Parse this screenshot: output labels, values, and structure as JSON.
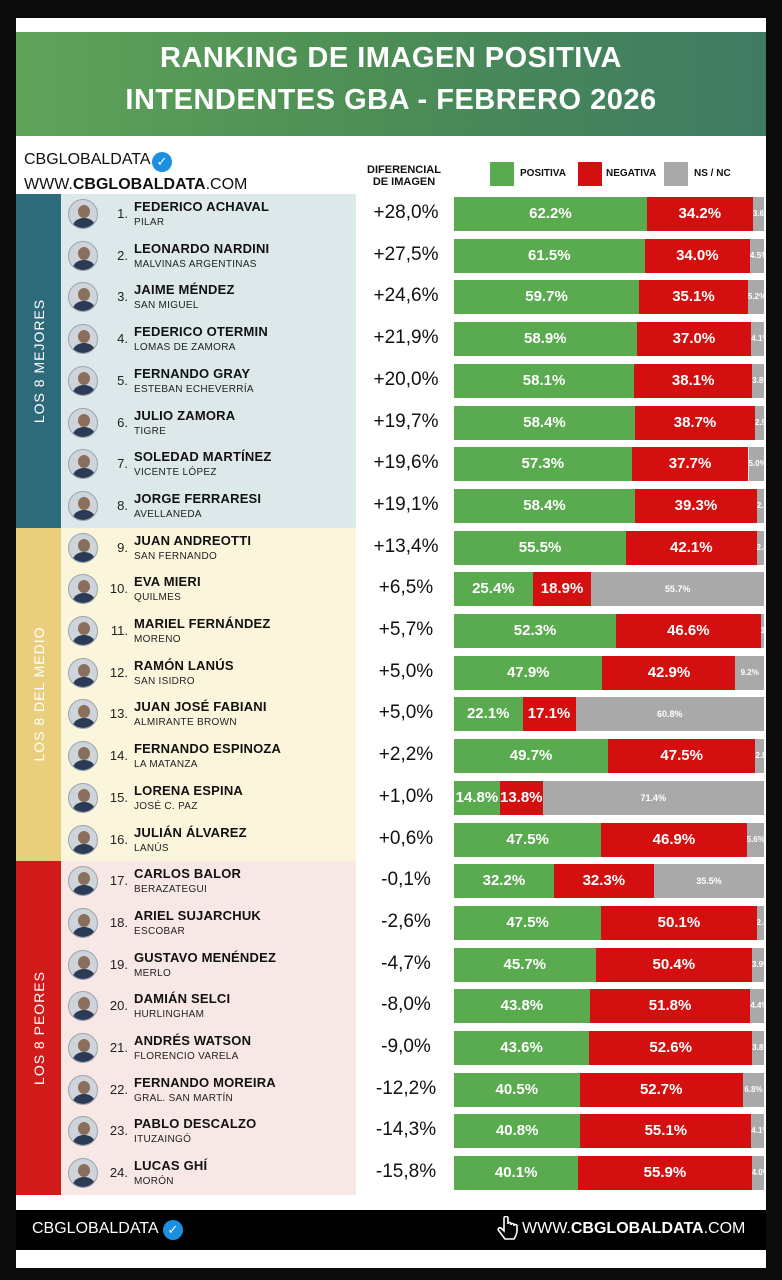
{
  "header": {
    "title_line1": "RANKING DE IMAGEN POSITIVA",
    "title_line2": "INTENDENTES GBA - FEBRERO 2026"
  },
  "brand": {
    "name": "CBGLOBALDATA",
    "site_prefix": "WWW.",
    "site_bold": "CBGLOBALDATA",
    "site_suffix": ".COM",
    "check_glyph": "✓"
  },
  "columns": {
    "diff_line1": "DIFERENCIAL",
    "diff_line2": "DE IMAGEN"
  },
  "footer": {
    "brand": "CBGLOBALDATA",
    "site_prefix": "WWW.",
    "site_bold": "CBGLOBALDATA",
    "site_suffix": ".COM",
    "hand_icon": "pointer-hand"
  },
  "colors": {
    "positive": "#5aaa4f",
    "negative": "#d40f0f",
    "nsnc": "#a9a9a9",
    "band_best": "#2e6b7a",
    "band_middle": "#e9cf7d",
    "band_worst": "#d11a1a",
    "bg_best": "#dce8ea",
    "bg_middle": "#fbf5dc",
    "bg_worst": "#f7e7e5"
  },
  "chart_data": {
    "type": "bar",
    "stacked": true,
    "orientation": "horizontal",
    "title": "RANKING DE IMAGEN POSITIVA INTENDENTES GBA - FEBRERO 2026",
    "legend": [
      "POSITIVA",
      "NEGATIVA",
      "NS / NC"
    ],
    "legend_position": "top-right",
    "groups": [
      "LOS 8 MEJORES",
      "LOS 8 DEL MEDIO",
      "LOS 8 PEORES"
    ],
    "rows": [
      {
        "rank": "1.",
        "name": "FEDERICO ACHAVAL",
        "city": "PILAR",
        "diff": "+28,0%",
        "pos": 62.2,
        "neg": 34.2,
        "ns": 3.6,
        "pos_label": "62.2%",
        "neg_label": "34.2%",
        "ns_label": "3.6%"
      },
      {
        "rank": "2.",
        "name": "LEONARDO NARDINI",
        "city": "MALVINAS ARGENTINAS",
        "diff": "+27,5%",
        "pos": 61.5,
        "neg": 34.0,
        "ns": 4.5,
        "pos_label": "61.5%",
        "neg_label": "34.0%",
        "ns_label": "4.5%"
      },
      {
        "rank": "3.",
        "name": "JAIME MÉNDEZ",
        "city": "SAN MIGUEL",
        "diff": "+24,6%",
        "pos": 59.7,
        "neg": 35.1,
        "ns": 5.2,
        "pos_label": "59.7%",
        "neg_label": "35.1%",
        "ns_label": "5.2%"
      },
      {
        "rank": "4.",
        "name": "FEDERICO OTERMIN",
        "city": "LOMAS DE ZAMORA",
        "diff": "+21,9%",
        "pos": 58.9,
        "neg": 37.0,
        "ns": 4.1,
        "pos_label": "58.9%",
        "neg_label": "37.0%",
        "ns_label": "4.1%"
      },
      {
        "rank": "5.",
        "name": "FERNANDO GRAY",
        "city": "ESTEBAN ECHEVERRÍA",
        "diff": "+20,0%",
        "pos": 58.1,
        "neg": 38.1,
        "ns": 3.8,
        "pos_label": "58.1%",
        "neg_label": "38.1%",
        "ns_label": "3.8%"
      },
      {
        "rank": "6.",
        "name": "JULIO ZAMORA",
        "city": "TIGRE",
        "diff": "+19,7%",
        "pos": 58.4,
        "neg": 38.7,
        "ns": 2.9,
        "pos_label": "58.4%",
        "neg_label": "38.7%",
        "ns_label": "2.9%"
      },
      {
        "rank": "7.",
        "name": "SOLEDAD MARTÍNEZ",
        "city": "VICENTE LÓPEZ",
        "diff": "+19,6%",
        "pos": 57.3,
        "neg": 37.7,
        "ns": 5.0,
        "pos_label": "57.3%",
        "neg_label": "37.7%",
        "ns_label": "5.0%"
      },
      {
        "rank": "8.",
        "name": "JORGE FERRARESI",
        "city": "AVELLANEDA",
        "diff": "+19,1%",
        "pos": 58.4,
        "neg": 39.3,
        "ns": 2.3,
        "pos_label": "58.4%",
        "neg_label": "39.3%",
        "ns_label": "2.3%"
      },
      {
        "rank": "9.",
        "name": "JUAN ANDREOTTI",
        "city": "SAN FERNANDO",
        "diff": "+13,4%",
        "pos": 55.5,
        "neg": 42.1,
        "ns": 2.4,
        "pos_label": "55.5%",
        "neg_label": "42.1%",
        "ns_label": "2.4%"
      },
      {
        "rank": "10.",
        "name": "EVA MIERI",
        "city": "QUILMES",
        "diff": "+6,5%",
        "pos": 25.4,
        "neg": 18.9,
        "ns": 55.7,
        "pos_label": "25.4%",
        "neg_label": "18.9%",
        "ns_label": "55.7%"
      },
      {
        "rank": "11.",
        "name": "MARIEL FERNÁNDEZ",
        "city": "MORENO",
        "diff": "+5,7%",
        "pos": 52.3,
        "neg": 46.6,
        "ns": 1.1,
        "pos_label": "52.3%",
        "neg_label": "46.6%",
        "ns_label": "1.1%"
      },
      {
        "rank": "12.",
        "name": "RAMÓN LANÚS",
        "city": "SAN ISIDRO",
        "diff": "+5,0%",
        "pos": 47.9,
        "neg": 42.9,
        "ns": 9.2,
        "pos_label": "47.9%",
        "neg_label": "42.9%",
        "ns_label": "9.2%"
      },
      {
        "rank": "13.",
        "name": "JUAN JOSÉ FABIANI",
        "city": "ALMIRANTE BROWN",
        "diff": "+5,0%",
        "pos": 22.1,
        "neg": 17.1,
        "ns": 60.8,
        "pos_label": "22.1%",
        "neg_label": "17.1%",
        "ns_label": "60.8%"
      },
      {
        "rank": "14.",
        "name": "FERNANDO ESPINOZA",
        "city": "LA MATANZA",
        "diff": "+2,2%",
        "pos": 49.7,
        "neg": 47.5,
        "ns": 2.8,
        "pos_label": "49.7%",
        "neg_label": "47.5%",
        "ns_label": "2.8%"
      },
      {
        "rank": "15.",
        "name": "LORENA ESPINA",
        "city": "JOSÉ C. PAZ",
        "diff": "+1,0%",
        "pos": 14.8,
        "neg": 13.8,
        "ns": 71.4,
        "pos_label": "14.8%",
        "neg_label": "13.8%",
        "ns_label": "71.4%"
      },
      {
        "rank": "16.",
        "name": "JULIÁN ÁLVAREZ",
        "city": "LANÚS",
        "diff": "+0,6%",
        "pos": 47.5,
        "neg": 46.9,
        "ns": 5.6,
        "pos_label": "47.5%",
        "neg_label": "46.9%",
        "ns_label": "5.6%"
      },
      {
        "rank": "17.",
        "name": "CARLOS BALOR",
        "city": "BERAZATEGUI",
        "diff": "-0,1%",
        "pos": 32.2,
        "neg": 32.3,
        "ns": 35.5,
        "pos_label": "32.2%",
        "neg_label": "32.3%",
        "ns_label": "35.5%"
      },
      {
        "rank": "18.",
        "name": "ARIEL SUJARCHUK",
        "city": "ESCOBAR",
        "diff": "-2,6%",
        "pos": 47.5,
        "neg": 50.1,
        "ns": 2.4,
        "pos_label": "47.5%",
        "neg_label": "50.1%",
        "ns_label": "2.4%"
      },
      {
        "rank": "19.",
        "name": "GUSTAVO MENÉNDEZ",
        "city": "MERLO",
        "diff": "-4,7%",
        "pos": 45.7,
        "neg": 50.4,
        "ns": 3.9,
        "pos_label": "45.7%",
        "neg_label": "50.4%",
        "ns_label": "3.9%"
      },
      {
        "rank": "20.",
        "name": "DAMIÁN SELCI",
        "city": "HURLINGHAM",
        "diff": "-8,0%",
        "pos": 43.8,
        "neg": 51.8,
        "ns": 4.4,
        "pos_label": "43.8%",
        "neg_label": "51.8%",
        "ns_label": "4.4%"
      },
      {
        "rank": "21.",
        "name": "ANDRÉS WATSON",
        "city": "FLORENCIO VARELA",
        "diff": "-9,0%",
        "pos": 43.6,
        "neg": 52.6,
        "ns": 3.8,
        "pos_label": "43.6%",
        "neg_label": "52.6%",
        "ns_label": "3.8%"
      },
      {
        "rank": "22.",
        "name": "FERNANDO MOREIRA",
        "city": "GRAL. SAN MARTÍN",
        "diff": "-12,2%",
        "pos": 40.5,
        "neg": 52.7,
        "ns": 6.8,
        "pos_label": "40.5%",
        "neg_label": "52.7%",
        "ns_label": "6.8%"
      },
      {
        "rank": "23.",
        "name": "PABLO DESCALZO",
        "city": "ITUZAINGÓ",
        "diff": "-14,3%",
        "pos": 40.8,
        "neg": 55.1,
        "ns": 4.1,
        "pos_label": "40.8%",
        "neg_label": "55.1%",
        "ns_label": "4.1%"
      },
      {
        "rank": "24.",
        "name": "LUCAS GHÍ",
        "city": "MORÓN",
        "diff": "-15,8%",
        "pos": 40.1,
        "neg": 55.9,
        "ns": 4.0,
        "pos_label": "40.1%",
        "neg_label": "55.9%",
        "ns_label": "4.0%"
      }
    ]
  }
}
